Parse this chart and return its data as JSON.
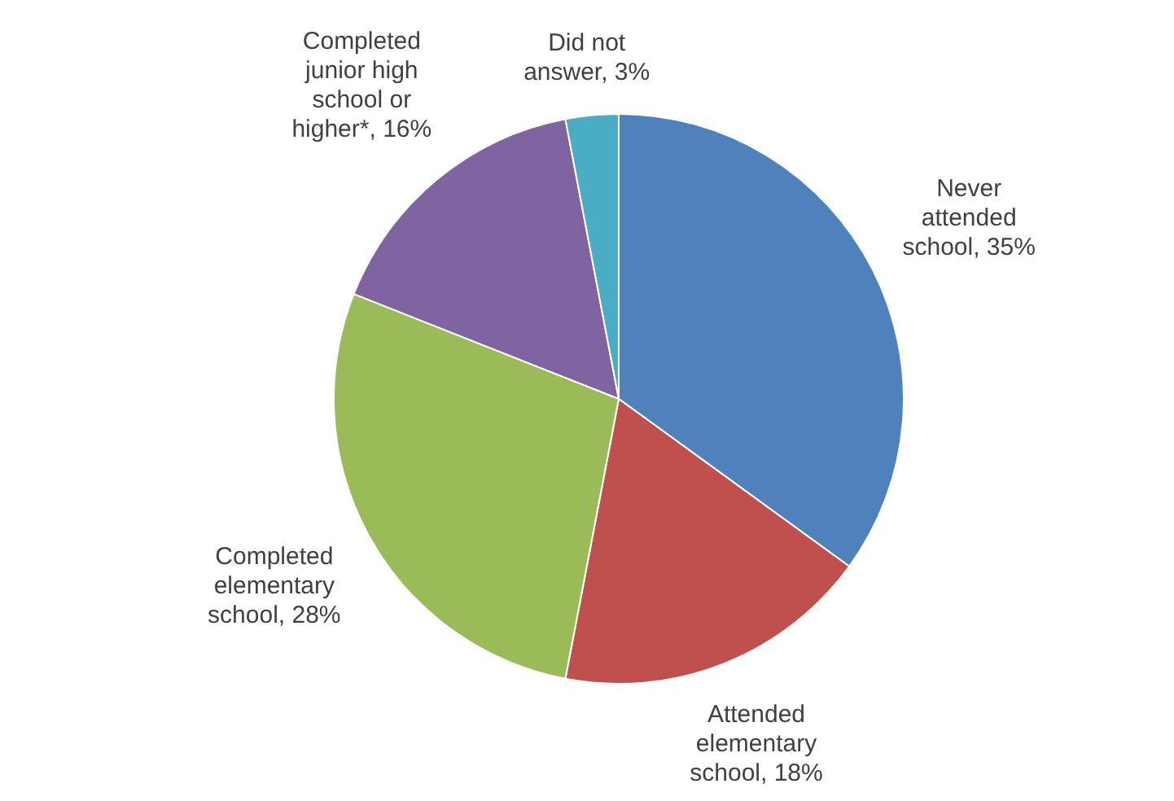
{
  "chart_data": {
    "type": "pie",
    "categories": [
      "Never attended school",
      "Attended elementary school",
      "Completed elementary school",
      "Completed junior high school or higher*",
      "Did not answer"
    ],
    "values": [
      35,
      18,
      28,
      16,
      3
    ],
    "value_labels": [
      "35%",
      "18%",
      "28%",
      "16%",
      "3%"
    ],
    "colors": [
      "#4f81bd",
      "#c0504d",
      "#9bbb59",
      "#8064a2",
      "#4bacc6"
    ]
  }
}
